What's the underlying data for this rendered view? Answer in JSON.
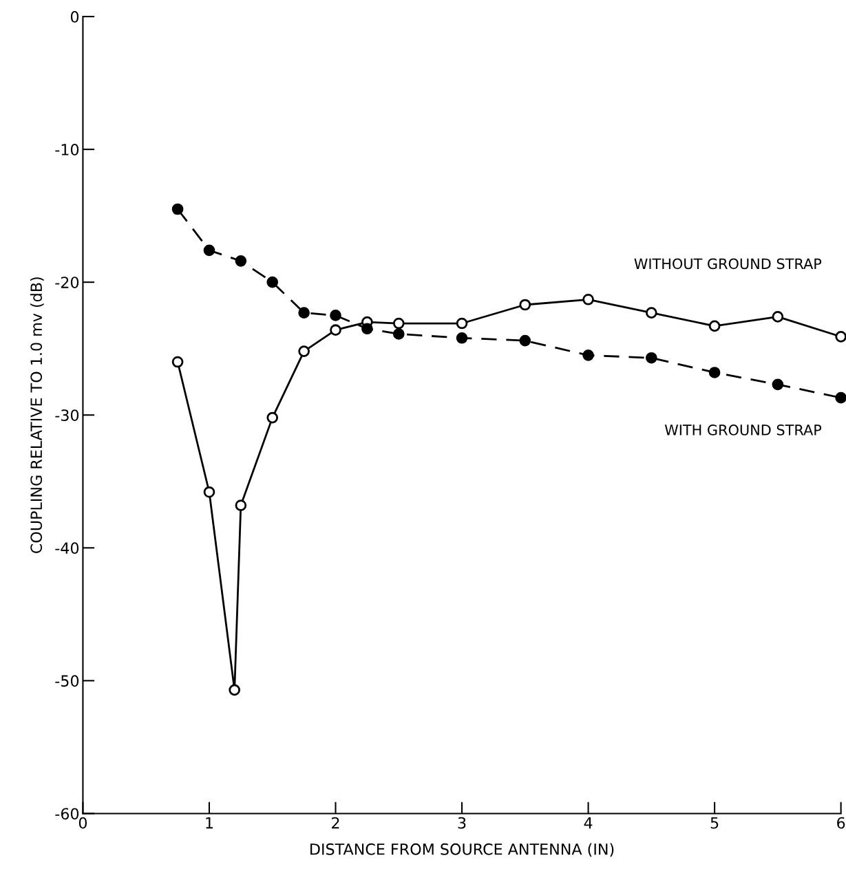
{
  "chart_data": {
    "type": "line",
    "xlabel": "DISTANCE FROM SOURCE ANTENNA (IN)",
    "ylabel": "COUPLING RELATIVE TO 1.0 mv (dB)",
    "xlim": [
      0,
      6
    ],
    "xticks": [
      0,
      1,
      2,
      3,
      4,
      5,
      6
    ],
    "ylim": [
      -60,
      0
    ],
    "yticks": [
      -60,
      -50,
      -40,
      -30,
      -20,
      -10,
      0
    ],
    "grid": false,
    "marker": "circle",
    "series": [
      {
        "name": "WITHOUT GROUND STRAP",
        "color": "#000000",
        "line_style": "solid",
        "x": [
          0.75,
          1,
          1.2,
          1.25,
          1.5,
          1.75,
          2,
          2.25,
          2.5,
          3,
          3.5,
          4,
          4.5,
          5,
          5.5,
          6
        ],
        "values": [
          -26,
          -35.8,
          -50.7,
          -36.8,
          -30.2,
          -25.2,
          -23.6,
          -23.0,
          -23.1,
          -23.1,
          -21.7,
          -21.3,
          -22.3,
          -23.3,
          -22.6,
          -24.1
        ]
      },
      {
        "name": "WITH GROUND STRAP",
        "color": "#000000",
        "line_style": "dashed",
        "x": [
          0.75,
          1,
          1.25,
          1.5,
          1.75,
          2,
          2.25,
          2.5,
          3,
          3.5,
          4,
          4.5,
          5,
          5.5,
          6
        ],
        "values": [
          -14.5,
          -17.6,
          -18.4,
          -20.0,
          -22.3,
          -22.5,
          -23.5,
          -23.9,
          -24.2,
          -24.4,
          -25.5,
          -25.7,
          -26.8,
          -27.7,
          -28.7
        ]
      }
    ]
  }
}
